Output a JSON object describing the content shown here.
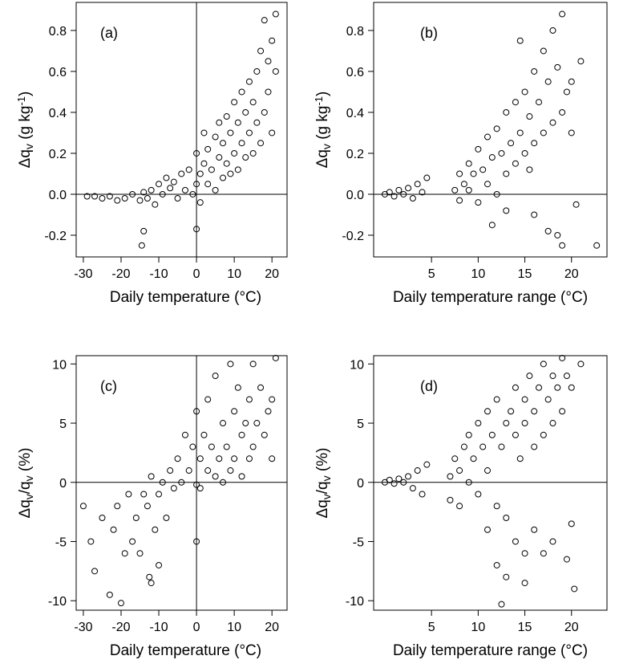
{
  "chart_data": [
    {
      "type": "scatter",
      "annotation": "(a)",
      "xlabel": "Daily temperature (°C)",
      "ylabel": [
        {
          "text": "Δq"
        },
        {
          "text": "v",
          "sub": true
        },
        {
          "text": " (g kg"
        },
        {
          "text": "-1",
          "sup": true
        },
        {
          "text": ")"
        }
      ],
      "xlim": [
        -31.9,
        24
      ],
      "ylim": [
        -0.306,
        0.937
      ],
      "xticks": [
        -30,
        -20,
        -10,
        0,
        10,
        20
      ],
      "yticks": [
        -0.2,
        {
          "value": 0,
          "label": "0.0"
        },
        0.2,
        0.4,
        0.6,
        0.8
      ],
      "hline": 0,
      "vline": 0,
      "color": "#000000",
      "x": [
        -29,
        -27,
        -25,
        -23,
        -21,
        -19,
        -17,
        -15,
        -14,
        -13,
        -12,
        -11,
        -10,
        -9,
        -8,
        -7,
        -6,
        -5,
        -4,
        -3,
        -2,
        -1,
        0,
        0,
        1,
        1,
        2,
        2,
        3,
        3,
        4,
        5,
        5,
        6,
        6,
        7,
        7,
        8,
        8,
        9,
        9,
        10,
        10,
        11,
        11,
        12,
        12,
        13,
        13,
        14,
        14,
        15,
        15,
        16,
        16,
        17,
        17,
        18,
        18,
        19,
        19,
        20,
        20,
        21,
        -14.5,
        -14,
        0,
        21
      ],
      "values": [
        -0.01,
        -0.01,
        -0.02,
        -0.01,
        -0.03,
        -0.02,
        0.0,
        -0.03,
        0.01,
        -0.02,
        0.02,
        -0.05,
        0.05,
        0.0,
        0.08,
        0.03,
        0.06,
        -0.02,
        0.1,
        0.02,
        0.12,
        0.0,
        0.05,
        0.2,
        0.1,
        -0.04,
        0.15,
        0.3,
        0.05,
        0.22,
        0.12,
        0.28,
        0.02,
        0.18,
        0.35,
        0.08,
        0.25,
        0.15,
        0.38,
        0.1,
        0.3,
        0.2,
        0.45,
        0.12,
        0.35,
        0.25,
        0.5,
        0.18,
        0.4,
        0.3,
        0.55,
        0.2,
        0.45,
        0.35,
        0.6,
        0.25,
        0.7,
        0.4,
        0.85,
        0.5,
        0.65,
        0.3,
        0.75,
        0.6,
        -0.25,
        -0.18,
        -0.17,
        0.88
      ]
    },
    {
      "type": "scatter",
      "annotation": "(b)",
      "xlabel": "Daily temperature range (°C)",
      "ylabel": [
        {
          "text": "Δq"
        },
        {
          "text": "v",
          "sub": true
        },
        {
          "text": " (g kg"
        },
        {
          "text": "-1",
          "sup": true
        },
        {
          "text": ")"
        }
      ],
      "xlim": [
        -1.2,
        23.8
      ],
      "ylim": [
        -0.306,
        0.937
      ],
      "xticks": [
        5,
        10,
        15,
        20
      ],
      "yticks": [
        -0.2,
        {
          "value": 0,
          "label": "0.0"
        },
        0.2,
        0.4,
        0.6,
        0.8
      ],
      "hline": 0,
      "color": "#000000",
      "x": [
        0,
        0.5,
        1,
        1.5,
        2,
        2.5,
        3,
        3.5,
        4,
        4.5,
        7.5,
        8,
        8,
        8.5,
        9,
        9,
        9.5,
        10,
        10,
        10.5,
        11,
        11,
        11.5,
        12,
        12,
        12.5,
        13,
        13,
        13.5,
        14,
        14,
        14.5,
        15,
        15,
        15.5,
        16,
        16,
        16.5,
        17,
        17,
        17.5,
        18,
        18,
        18.5,
        19,
        19,
        19.5,
        20,
        20,
        21,
        11.5,
        13,
        14.5,
        16,
        17.5,
        19,
        20.5,
        22.7,
        18.5,
        15.5
      ],
      "values": [
        0.0,
        0.01,
        -0.01,
        0.02,
        0.0,
        0.03,
        -0.02,
        0.05,
        0.01,
        0.08,
        0.02,
        0.1,
        -0.03,
        0.05,
        0.15,
        0.02,
        0.1,
        0.22,
        -0.04,
        0.12,
        0.28,
        0.05,
        0.18,
        0.32,
        0.0,
        0.2,
        0.4,
        0.1,
        0.25,
        0.45,
        0.15,
        0.3,
        0.5,
        0.2,
        0.38,
        0.6,
        0.25,
        0.45,
        0.7,
        0.3,
        0.55,
        0.8,
        0.35,
        0.62,
        0.88,
        0.4,
        0.5,
        0.55,
        0.3,
        0.65,
        -0.15,
        -0.08,
        0.75,
        -0.1,
        -0.18,
        -0.25,
        -0.05,
        -0.25,
        -0.2,
        0.12
      ]
    },
    {
      "type": "scatter",
      "annotation": "(c)",
      "xlabel": "Daily temperature (°C)",
      "ylabel": [
        {
          "text": "Δq"
        },
        {
          "text": "v",
          "sub": true
        },
        {
          "text": "/q"
        },
        {
          "text": "v",
          "sub": true
        },
        {
          "text": " (%)"
        }
      ],
      "xlim": [
        -31.9,
        24
      ],
      "ylim": [
        -10.8,
        10.7
      ],
      "xticks": [
        -30,
        -20,
        -10,
        0,
        10,
        20
      ],
      "yticks": [
        -10,
        -5,
        0,
        5,
        10
      ],
      "hline": 0,
      "vline": 0,
      "color": "#000000",
      "x": [
        -30,
        -28,
        -27,
        -25,
        -23,
        -22,
        -21,
        -20,
        -19,
        -18,
        -17,
        -16,
        -15,
        -14,
        -13,
        -12,
        -12,
        -11,
        -10,
        -9,
        -8,
        -7,
        -6,
        -5,
        -4,
        -3,
        -2,
        -1,
        0,
        0,
        1,
        1,
        2,
        3,
        3,
        4,
        5,
        5,
        6,
        7,
        7,
        8,
        9,
        9,
        10,
        10,
        11,
        12,
        12,
        13,
        14,
        14,
        15,
        15,
        16,
        17,
        18,
        19,
        20,
        21,
        -12.5,
        -10,
        0,
        20
      ],
      "values": [
        -2,
        -5,
        -7.5,
        -3,
        -9.5,
        -4,
        -2,
        -10.2,
        -6,
        -1,
        -5,
        -3,
        -6,
        -1,
        -2,
        -8.5,
        0.5,
        -4,
        -1,
        0,
        -3,
        1,
        -0.5,
        2,
        0,
        4,
        1,
        3,
        -5,
        6,
        2,
        -0.5,
        4,
        1,
        7,
        3,
        0.5,
        9,
        2,
        5,
        0,
        3,
        10,
        1,
        6,
        2,
        8,
        4,
        0.5,
        5,
        7,
        2,
        10,
        3,
        5,
        8,
        4,
        6,
        7,
        10.5,
        -8,
        -7,
        -0.2,
        2
      ]
    },
    {
      "type": "scatter",
      "annotation": "(d)",
      "xlabel": "Daily temperature range (°C)",
      "ylabel": [
        {
          "text": "Δq"
        },
        {
          "text": "v",
          "sub": true
        },
        {
          "text": "/q"
        },
        {
          "text": "v",
          "sub": true
        },
        {
          "text": " (%)"
        }
      ],
      "xlim": [
        -1.2,
        23.8
      ],
      "ylim": [
        -10.8,
        10.7
      ],
      "xticks": [
        5,
        10,
        15,
        20
      ],
      "yticks": [
        -10,
        -5,
        0,
        5,
        10
      ],
      "hline": 0,
      "color": "#000000",
      "x": [
        0,
        0.5,
        1,
        1.5,
        2,
        2.5,
        3,
        3.5,
        4,
        4.5,
        7,
        7,
        7.5,
        8,
        8,
        8.5,
        9,
        9,
        9.5,
        10,
        10,
        10.5,
        11,
        11,
        11.5,
        12,
        12,
        12.5,
        13,
        13,
        13.5,
        14,
        14,
        14.5,
        15,
        15,
        15.5,
        16,
        16,
        16.5,
        17,
        17,
        17.5,
        18,
        18,
        18.5,
        19,
        19,
        19.5,
        20,
        12,
        13,
        14,
        15,
        16,
        17,
        18,
        19.5,
        20.3,
        21,
        11,
        12.5,
        15,
        20
      ],
      "values": [
        0,
        0.2,
        -0.1,
        0.3,
        0,
        0.5,
        -0.5,
        1,
        -1,
        1.5,
        0.5,
        -1.5,
        2,
        1,
        -2,
        3,
        0,
        4,
        2,
        5,
        -1,
        3,
        6,
        1,
        4,
        -2,
        7,
        3,
        5,
        -3,
        6,
        4,
        8,
        2,
        7,
        5,
        9,
        3,
        6,
        8,
        10,
        4,
        7,
        9,
        5,
        8,
        10.5,
        6,
        9,
        8,
        -7,
        -8,
        -5,
        -6,
        -4,
        -6,
        -5,
        -6.5,
        -9,
        10,
        -4,
        -10.3,
        -8.5,
        -3.5
      ]
    }
  ]
}
